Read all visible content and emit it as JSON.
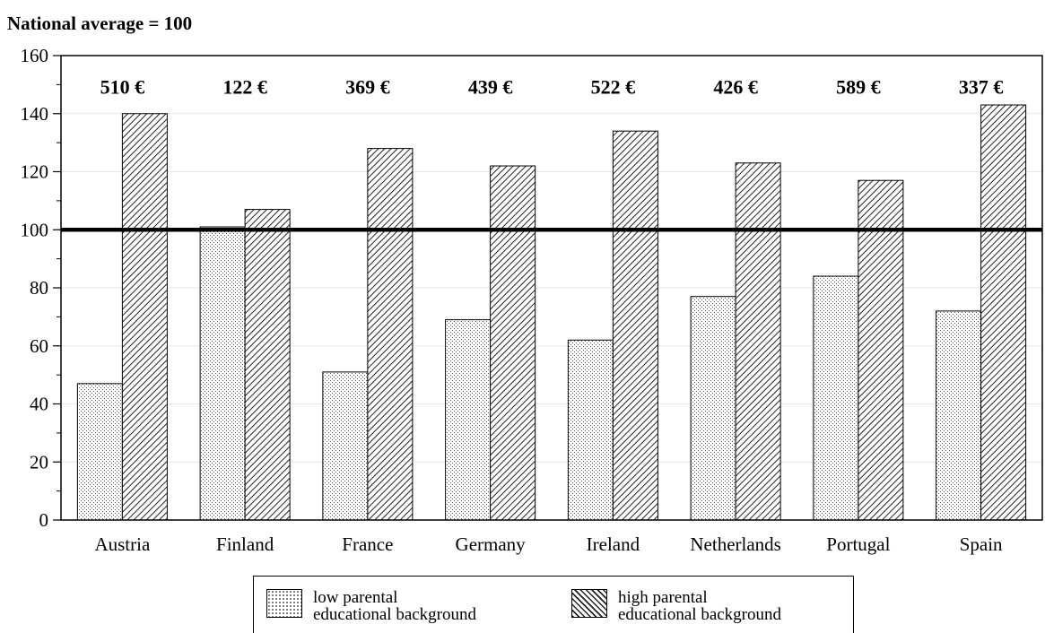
{
  "chart_data": {
    "type": "bar",
    "title": "National average = 100",
    "categories": [
      "Austria",
      "Finland",
      "France",
      "Germany",
      "Ireland",
      "Netherlands",
      "Portugal",
      "Spain"
    ],
    "series": [
      {
        "name": "low parental educational background",
        "values": [
          47,
          101,
          51,
          69,
          62,
          77,
          84,
          72
        ]
      },
      {
        "name": "high parental educational background",
        "values": [
          140,
          107,
          128,
          122,
          134,
          123,
          117,
          143
        ]
      }
    ],
    "totals": [
      "510 €",
      "122 €",
      "369 €",
      "439 €",
      "522 €",
      "426 €",
      "589 €",
      "337 €"
    ],
    "reference_line": 100,
    "ylim": [
      0,
      160
    ],
    "yticks": [
      0,
      20,
      40,
      60,
      80,
      100,
      120,
      140,
      160
    ],
    "grid": true,
    "legend_position": "bottom",
    "legend": [
      {
        "line1": "low parental",
        "line2": "educational background",
        "pattern": "dots"
      },
      {
        "line1": "high parental",
        "line2": "educational background",
        "pattern": "hatch"
      }
    ]
  }
}
